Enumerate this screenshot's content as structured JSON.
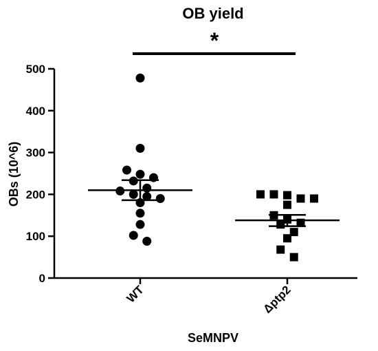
{
  "chart_data": {
    "type": "scatter",
    "title": "OB yield",
    "significance": "*",
    "xlabel": "SeMNPV",
    "ylabel": "OBs (10^6)",
    "ylim": [
      0,
      500
    ],
    "yticks": [
      "0",
      "100",
      "200",
      "300",
      "400",
      "500"
    ],
    "categories": [
      "WT",
      "Δptp2"
    ],
    "grid": false,
    "colors": {
      "marks": "#000000"
    },
    "series": [
      {
        "category": "WT",
        "marker": "circle",
        "values": [
          478,
          310,
          258,
          248,
          240,
          232,
          215,
          208,
          200,
          195,
          190,
          180,
          155,
          128,
          102,
          88
        ],
        "mean": 210,
        "sem_low": 186,
        "sem_high": 234
      },
      {
        "category": "Δptp2",
        "marker": "square",
        "values": [
          200,
          200,
          198,
          190,
          190,
          175,
          150,
          140,
          132,
          128,
          110,
          95,
          68,
          50
        ],
        "mean": 138,
        "sem_low": 124,
        "sem_high": 151
      }
    ]
  }
}
